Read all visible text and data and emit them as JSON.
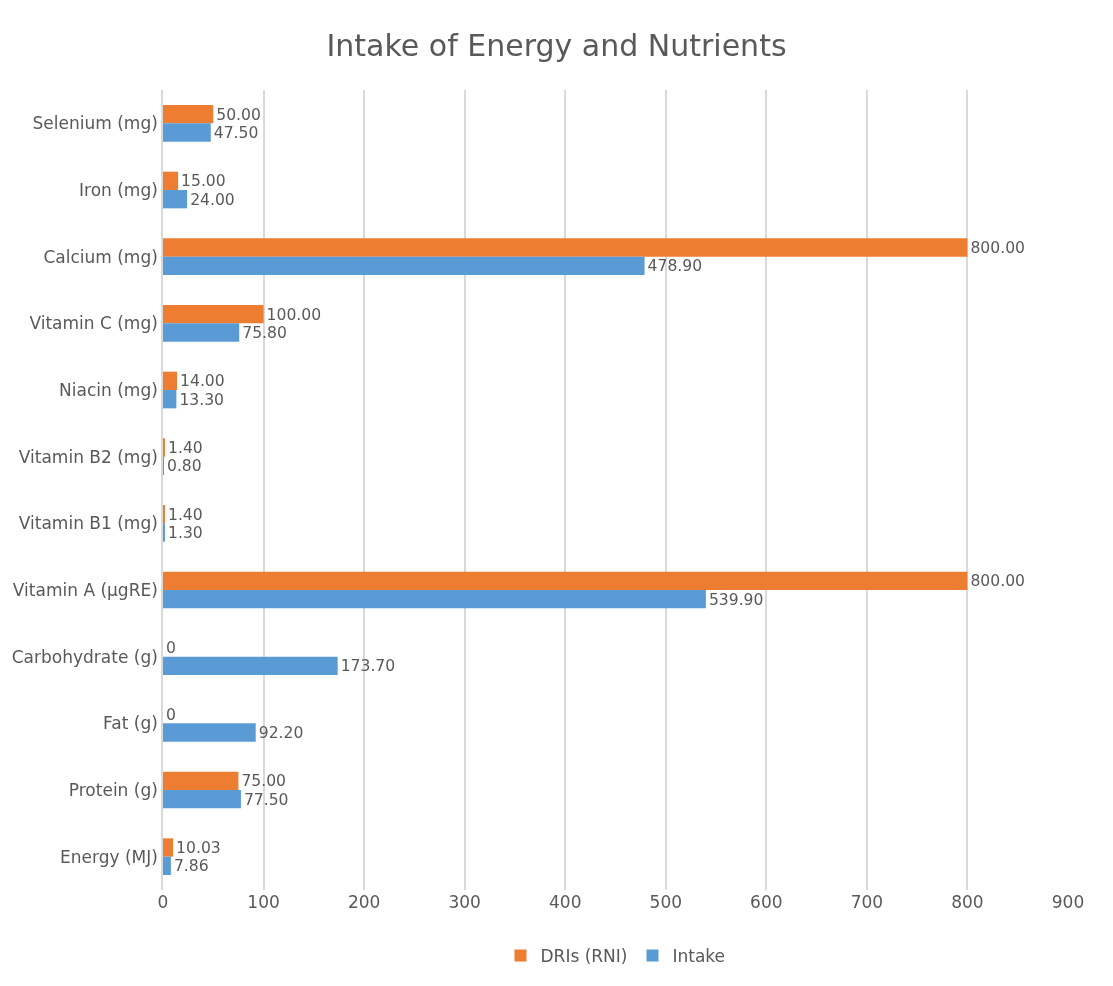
{
  "chart_data": {
    "type": "bar",
    "orientation": "horizontal",
    "title": "Intake of Energy and Nutrients",
    "categories": [
      "Selenium (mg)",
      "Iron (mg)",
      "Calcium (mg)",
      "Vitamin C (mg)",
      "Niacin (mg)",
      "Vitamin B2 (mg)",
      "Vitamin B1 (mg)",
      "Vitamin A (μgRE)",
      "Carbohydrate (g)",
      "Fat (g)",
      "Protein (g)",
      "Energy (MJ)"
    ],
    "series": [
      {
        "name": "DRIs (RNI)",
        "color": "#ed7d31",
        "values": [
          50,
          15,
          800,
          100,
          14,
          1.4,
          1.4,
          800,
          0,
          0,
          75,
          10.03
        ],
        "value_labels": [
          "50.00",
          "15.00",
          "800.00",
          "100.00",
          "14.00",
          "1.40",
          "1.40",
          "800.00",
          "0",
          "0",
          "75.00",
          "10.03"
        ]
      },
      {
        "name": "Intake",
        "color": "#5b9bd5",
        "values": [
          47.5,
          24,
          478.9,
          75.8,
          13.3,
          0.8,
          1.3,
          539.9,
          173.7,
          92.2,
          77.5,
          7.86
        ],
        "value_labels": [
          "47.50",
          "24.00",
          "478.90",
          "75.80",
          "13.30",
          "0.80",
          "1.30",
          "539.90",
          "173.70",
          "92.20",
          "77.50",
          "7.86"
        ]
      }
    ],
    "xlim": [
      0,
      900
    ],
    "xticks": [
      0,
      100,
      200,
      300,
      400,
      500,
      600,
      700,
      800,
      900
    ],
    "grid": "x",
    "legend": "bottom"
  }
}
